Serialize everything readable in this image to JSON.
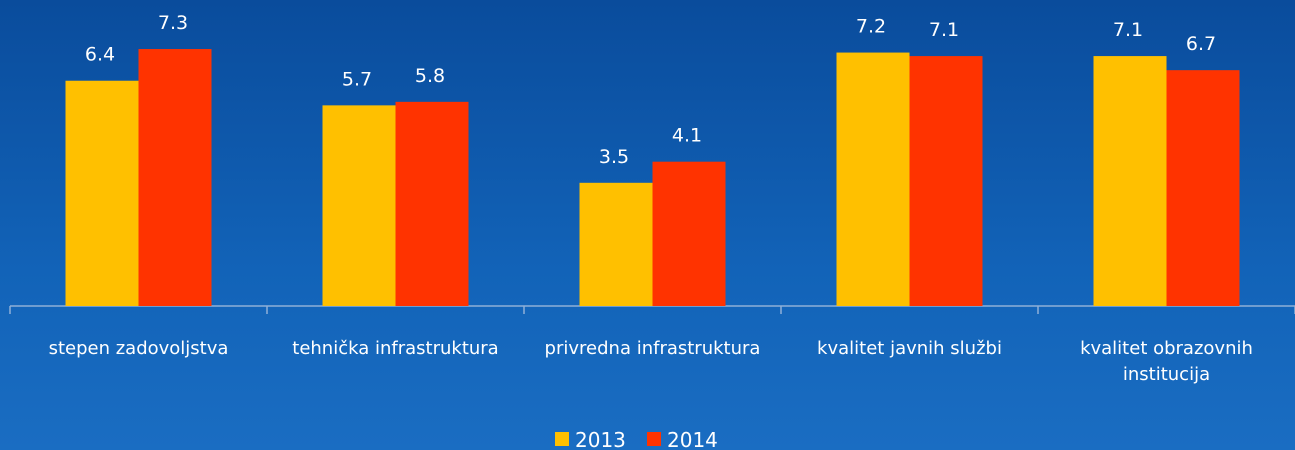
{
  "chart_data": {
    "type": "bar",
    "categories": [
      "stepen zadovoljstva",
      "tehnička infrastruktura",
      "privredna infrastruktura",
      "kvalitet javnih službi",
      "kvalitet obrazovnih institucija"
    ],
    "series": [
      {
        "name": "2013",
        "color": "#ffc000",
        "values": [
          6.4,
          5.7,
          3.5,
          7.2,
          7.1
        ]
      },
      {
        "name": "2014",
        "color": "#ff3300",
        "values": [
          7.3,
          5.8,
          4.1,
          7.1,
          6.7
        ]
      }
    ],
    "legend": "bottom"
  }
}
